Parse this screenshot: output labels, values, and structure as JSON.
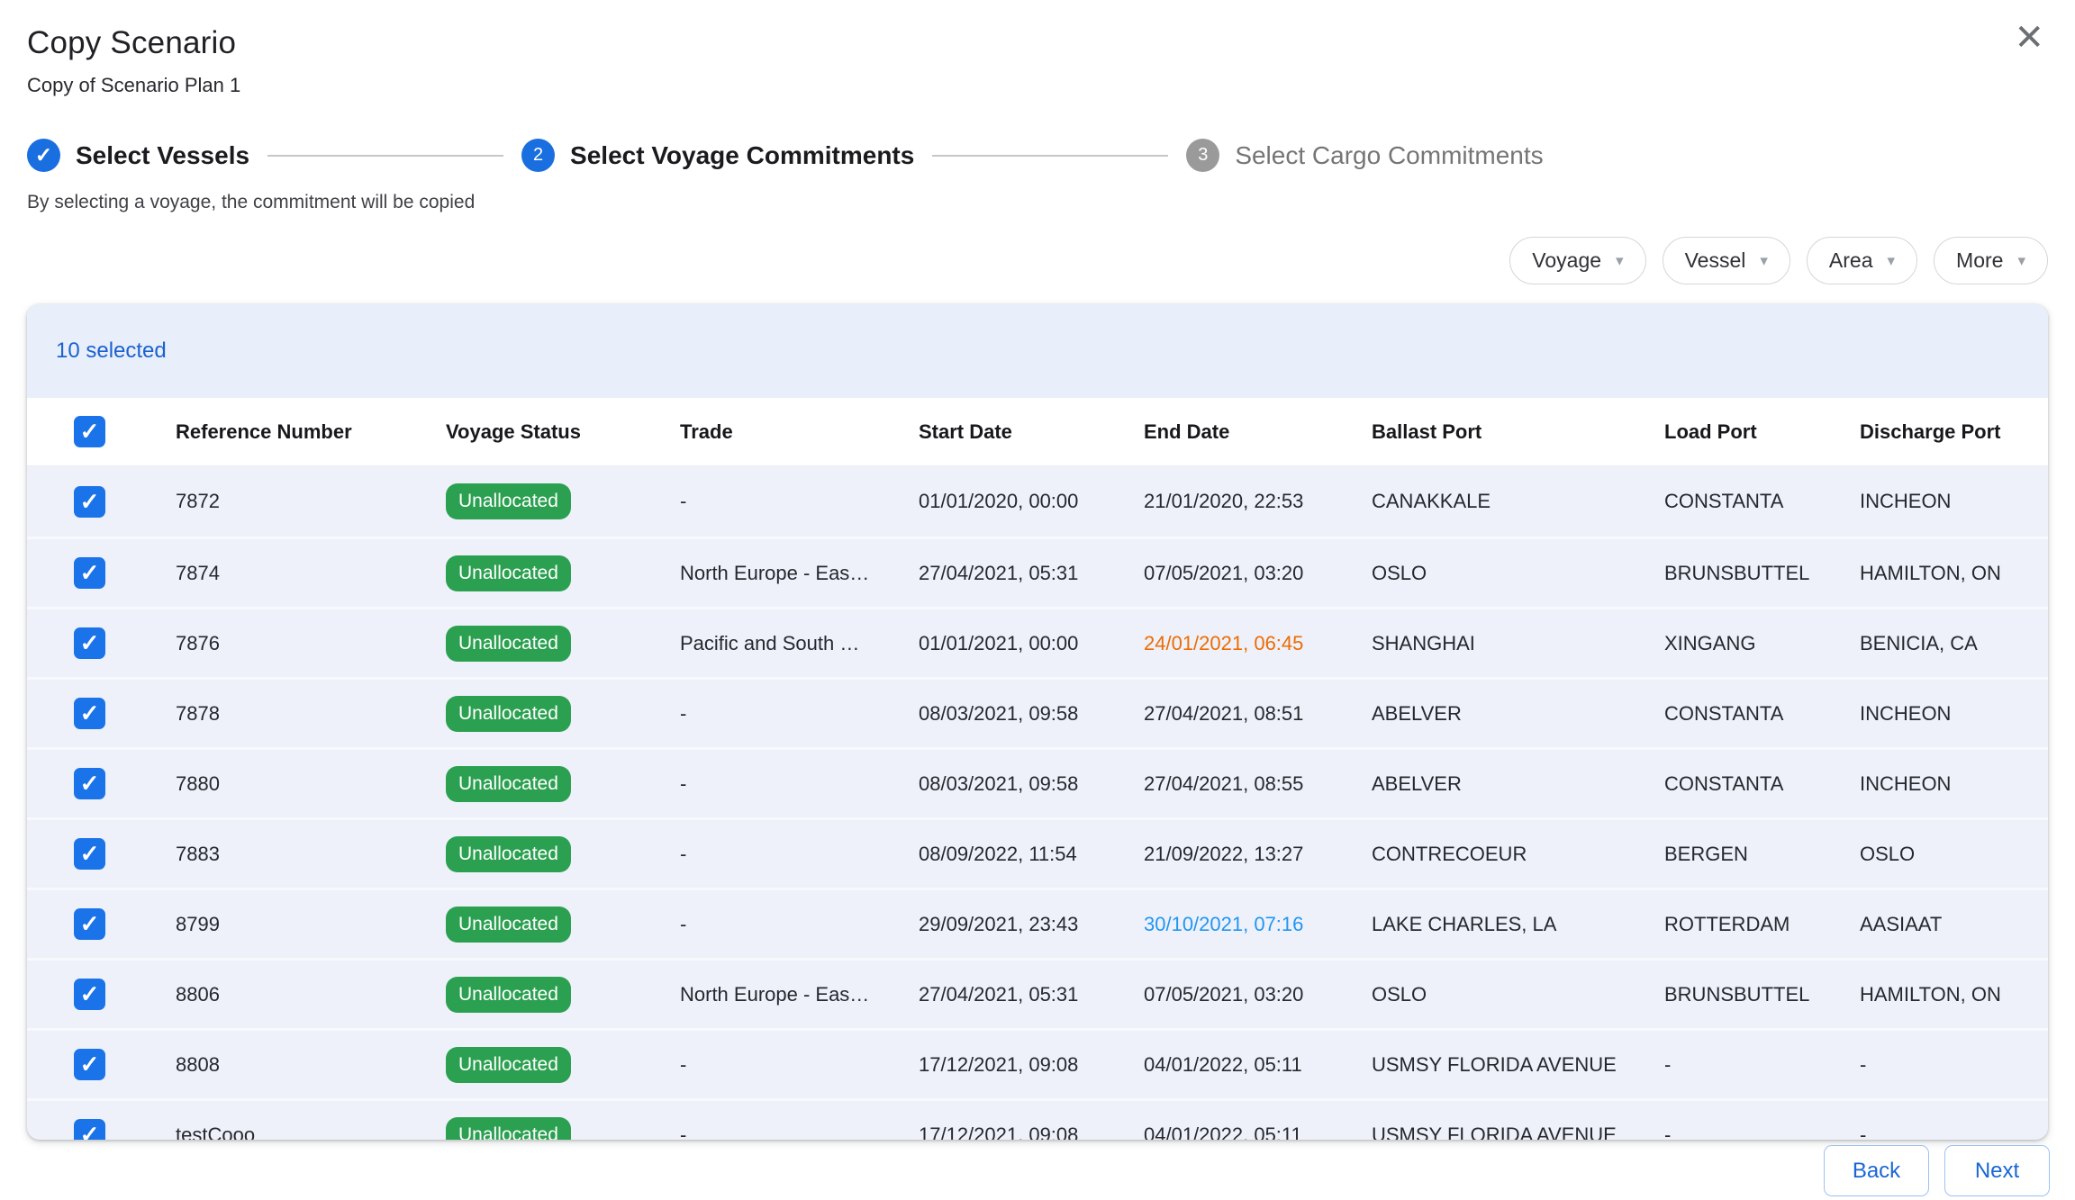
{
  "dialog": {
    "title": "Copy Scenario",
    "subtitle": "Copy of Scenario Plan 1"
  },
  "icons": {
    "close": "✕",
    "checkmark": "✓",
    "caret_down": "▾"
  },
  "stepper": {
    "steps": [
      {
        "label": "Select Vessels",
        "state": "completed",
        "indicator": "✓"
      },
      {
        "label": "Select Voyage Commitments",
        "state": "active",
        "indicator": "2"
      },
      {
        "label": "Select Cargo Commitments",
        "state": "upcoming",
        "indicator": "3"
      }
    ],
    "caption": "By selecting a voyage, the commitment will be copied"
  },
  "filters": {
    "voyage": "Voyage",
    "vessel": "Vessel",
    "area": "Area",
    "more": "More"
  },
  "table": {
    "selection_summary": "10 selected",
    "columns": [
      "Reference Number",
      "Voyage Status",
      "Trade",
      "Start Date",
      "End Date",
      "Ballast Port",
      "Load Port",
      "Discharge Port"
    ],
    "rows": [
      {
        "reference": "7872",
        "status": "Unallocated",
        "trade": "-",
        "start": "01/01/2020, 00:00",
        "end": "21/01/2020, 22:53",
        "ballast": "CANAKKALE",
        "load": "CONSTANTA",
        "discharge": "INCHEON",
        "selected": true
      },
      {
        "reference": "7874",
        "status": "Unallocated",
        "trade": "North Europe - Eas…",
        "start": "27/04/2021, 05:31",
        "end": "07/05/2021, 03:20",
        "ballast": "OSLO",
        "load": "BRUNSBUTTEL",
        "discharge": "HAMILTON, ON",
        "selected": true
      },
      {
        "reference": "7876",
        "status": "Unallocated",
        "trade": "Pacific and South …",
        "start": "01/01/2021, 00:00",
        "end": "24/01/2021, 06:45",
        "end_highlight": "warning",
        "ballast": "SHANGHAI",
        "load": "XINGANG",
        "discharge": "BENICIA, CA",
        "selected": true
      },
      {
        "reference": "7878",
        "status": "Unallocated",
        "trade": "-",
        "start": "08/03/2021, 09:58",
        "end": "27/04/2021, 08:51",
        "ballast": "ABELVER",
        "load": "CONSTANTA",
        "discharge": "INCHEON",
        "selected": true
      },
      {
        "reference": "7880",
        "status": "Unallocated",
        "trade": "-",
        "start": "08/03/2021, 09:58",
        "end": "27/04/2021, 08:55",
        "ballast": "ABELVER",
        "load": "CONSTANTA",
        "discharge": "INCHEON",
        "selected": true
      },
      {
        "reference": "7883",
        "status": "Unallocated",
        "trade": "-",
        "start": "08/09/2022, 11:54",
        "end": "21/09/2022, 13:27",
        "ballast": "CONTRECOEUR",
        "load": "BERGEN",
        "discharge": "OSLO",
        "selected": true
      },
      {
        "reference": "8799",
        "status": "Unallocated",
        "trade": "-",
        "start": "29/09/2021, 23:43",
        "end": "30/10/2021, 07:16",
        "end_highlight": "info",
        "ballast": "LAKE CHARLES, LA",
        "load": "ROTTERDAM",
        "discharge": "AASIAAT",
        "selected": true
      },
      {
        "reference": "8806",
        "status": "Unallocated",
        "trade": "North Europe - Eas…",
        "start": "27/04/2021, 05:31",
        "end": "07/05/2021, 03:20",
        "ballast": "OSLO",
        "load": "BRUNSBUTTEL",
        "discharge": "HAMILTON, ON",
        "selected": true
      },
      {
        "reference": "8808",
        "status": "Unallocated",
        "trade": "-",
        "start": "17/12/2021, 09:08",
        "end": "04/01/2022, 05:11",
        "ballast": "USMSY FLORIDA AVENUE",
        "load": "-",
        "discharge": "-",
        "selected": true
      },
      {
        "reference": "testCooo",
        "status": "Unallocated",
        "trade": "-",
        "start": "17/12/2021, 09:08",
        "end": "04/01/2022, 05:11",
        "ballast": "USMSY FLORIDA AVENUE",
        "load": "-",
        "discharge": "-",
        "selected": true
      }
    ]
  },
  "footer": {
    "back_label": "Back",
    "next_label": "Next"
  },
  "colors": {
    "primary_blue": "#1a6fe0",
    "checkbox_blue": "#1a73e8",
    "status_green": "#2ba050",
    "end_date_warning": "#ed6c02",
    "end_date_info": "#2196f3",
    "row_selected_bg": "#eef1fa",
    "banner_bg": "#e9eefb",
    "step_upcoming_gray": "#9a9a9a"
  }
}
